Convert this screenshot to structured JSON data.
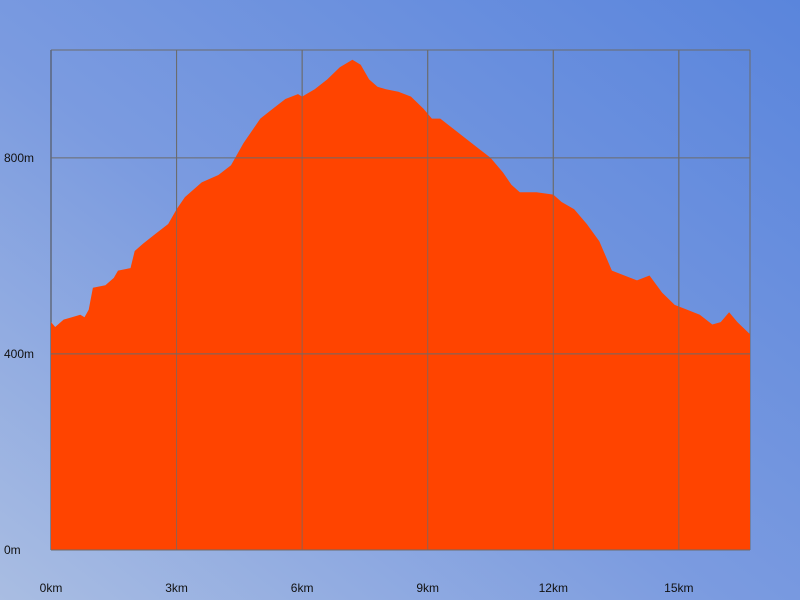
{
  "chart_data": {
    "type": "area",
    "title": "",
    "xlabel": "",
    "ylabel": "",
    "x_unit": "km",
    "y_unit": "m",
    "xlim": [
      0,
      16.7
    ],
    "ylim": [
      0,
      1020
    ],
    "grid": true,
    "x_ticks": [
      "0km",
      "3km",
      "6km",
      "9km",
      "12km",
      "15km"
    ],
    "x_tick_values": [
      0,
      3,
      6,
      9,
      12,
      15
    ],
    "y_ticks": [
      "0m",
      "400m",
      "800m"
    ],
    "y_tick_values": [
      0,
      400,
      800
    ],
    "colors": {
      "fill": "#ff4400",
      "grid": "#6b6b6b",
      "axis": "#4a4a4a"
    },
    "series": [
      {
        "x": [
          0,
          0.1,
          0.3,
          0.5,
          0.7,
          0.8,
          0.9,
          1.0,
          1.3,
          1.5,
          1.6,
          1.9,
          2.0,
          2.2,
          2.5,
          2.8,
          3.0,
          3.2,
          3.6,
          4.0,
          4.3,
          4.6,
          4.8,
          5.0,
          5.3,
          5.6,
          5.9,
          6.0,
          6.3,
          6.6,
          6.9,
          7.2,
          7.4,
          7.6,
          7.8,
          8.0,
          8.3,
          8.6,
          8.9,
          9.1,
          9.3,
          9.6,
          9.9,
          10.2,
          10.5,
          10.8,
          11.0,
          11.2,
          11.6,
          12.0,
          12.2,
          12.5,
          12.8,
          13.1,
          13.4,
          13.7,
          14.0,
          14.3,
          14.6,
          14.9,
          15.2,
          15.5,
          15.8,
          16.0,
          16.2,
          16.4,
          16.7
        ],
        "y": [
          465,
          455,
          470,
          475,
          480,
          475,
          490,
          535,
          540,
          555,
          570,
          575,
          610,
          625,
          645,
          665,
          695,
          720,
          750,
          765,
          785,
          830,
          855,
          880,
          900,
          920,
          930,
          925,
          940,
          960,
          985,
          1000,
          990,
          960,
          945,
          940,
          935,
          925,
          900,
          880,
          880,
          860,
          840,
          820,
          800,
          770,
          745,
          730,
          730,
          725,
          710,
          695,
          665,
          630,
          570,
          560,
          550,
          560,
          525,
          500,
          490,
          480,
          460,
          465,
          485,
          465,
          440
        ]
      }
    ]
  }
}
